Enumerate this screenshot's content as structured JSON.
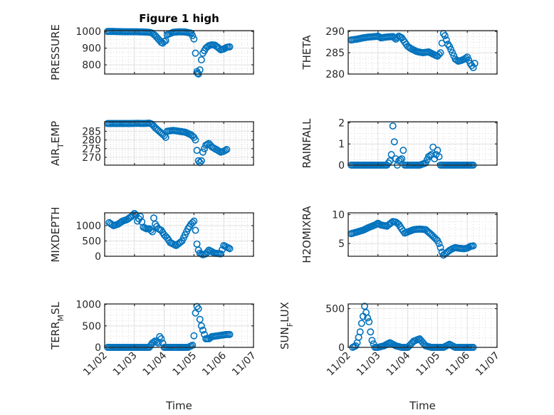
{
  "figure": {
    "title": "Figure 1 high",
    "marker_color": "#0072BD",
    "axis_color": "#262626"
  },
  "chart_data": [
    {
      "type": "scatter",
      "panel": "row1-left",
      "title": "Figure 1 high",
      "ylabel": "PRESSURE",
      "xlabel": "",
      "ylim": [
        745,
        1005
      ],
      "yticks": [
        800,
        900,
        1000
      ],
      "ytick_labels": [
        "800",
        "900",
        "1000"
      ],
      "xlim": [
        0,
        5
      ],
      "xticks": [
        0,
        1,
        2,
        3,
        4,
        5
      ],
      "xtick_labels": [],
      "grid": true,
      "minor_grid": true,
      "x": [
        0.1,
        0.3,
        0.5,
        0.7,
        0.9,
        1.1,
        1.3,
        1.5,
        1.6,
        1.7,
        1.8,
        1.85,
        1.9,
        1.95,
        2.0,
        2.05,
        2.1,
        2.3,
        2.5,
        2.7,
        2.9,
        2.95,
        3.0,
        3.05,
        3.1,
        3.12,
        3.15,
        3.2,
        3.25,
        3.3,
        3.4,
        3.5,
        3.6,
        3.7,
        3.8,
        3.9,
        4.0,
        4.1,
        4.2
      ],
      "y": [
        1000,
        1000,
        999,
        998,
        998,
        998,
        997,
        995,
        990,
        975,
        955,
        945,
        935,
        930,
        940,
        945,
        980,
        995,
        998,
        997,
        990,
        975,
        955,
        870,
        760,
        750,
        745,
        770,
        830,
        870,
        900,
        915,
        920,
        918,
        905,
        890,
        895,
        905,
        908
      ]
    },
    {
      "type": "scatter",
      "panel": "row1-right",
      "title": "",
      "ylabel": "THETA",
      "xlabel": "",
      "ylim": [
        280,
        290.2
      ],
      "yticks": [
        280,
        285,
        290
      ],
      "ytick_labels": [
        "280",
        "285",
        "290"
      ],
      "xlim": [
        0,
        5
      ],
      "xticks": [
        0,
        1,
        2,
        3,
        4,
        5
      ],
      "xtick_labels": [],
      "grid": true,
      "minor_grid": true,
      "x": [
        0.1,
        0.3,
        0.5,
        0.7,
        0.9,
        1.0,
        1.1,
        1.3,
        1.5,
        1.6,
        1.7,
        1.8,
        1.9,
        2.0,
        2.1,
        2.3,
        2.5,
        2.7,
        2.9,
        3.0,
        3.1,
        3.2,
        3.25,
        3.3,
        3.35,
        3.4,
        3.5,
        3.6,
        3.7,
        3.8,
        3.9,
        4.0,
        4.1,
        4.2,
        4.25
      ],
      "y": [
        288,
        288.2,
        288.5,
        288.7,
        288.8,
        288.9,
        288.5,
        288.7,
        288.8,
        288.2,
        288.9,
        288.5,
        287.5,
        286.5,
        286,
        285.3,
        285,
        285.2,
        284.5,
        284.2,
        285,
        289.5,
        289,
        288,
        287,
        286.5,
        285,
        283.5,
        283,
        283.2,
        283.5,
        284,
        282.5,
        281.5,
        282.5
      ]
    },
    {
      "type": "scatter",
      "panel": "row2-left",
      "title": "",
      "ylabel": "AIR_TEMP",
      "ylabel_base": "AIR",
      "ylabel_sub": "T",
      "ylabel_rest": "EMP",
      "xlabel": "",
      "ylim": [
        265.5,
        290.5
      ],
      "yticks": [
        270,
        275,
        280,
        285
      ],
      "ytick_labels": [
        "270",
        "275",
        "280",
        "285"
      ],
      "xlim": [
        0,
        5
      ],
      "xticks": [
        0,
        1,
        2,
        3,
        4,
        5
      ],
      "xtick_labels": [],
      "grid": true,
      "minor_grid": true,
      "x": [
        0.1,
        0.3,
        0.5,
        0.7,
        0.9,
        1.1,
        1.3,
        1.5,
        1.6,
        1.7,
        1.8,
        1.9,
        2.0,
        2.05,
        2.1,
        2.3,
        2.5,
        2.7,
        2.9,
        3.0,
        3.05,
        3.1,
        3.15,
        3.2,
        3.25,
        3.3,
        3.4,
        3.5,
        3.6,
        3.7,
        3.8,
        3.9,
        4.0,
        4.1
      ],
      "y": [
        289.5,
        289.5,
        289.5,
        289.5,
        289.5,
        289.6,
        289.5,
        289.7,
        289,
        287,
        285.5,
        284,
        282.5,
        281.5,
        285,
        285.5,
        285,
        284.5,
        283,
        281.5,
        280,
        274,
        268,
        267,
        268,
        273,
        277,
        278,
        276,
        275,
        274,
        273,
        273.5,
        274.5
      ]
    },
    {
      "type": "scatter",
      "panel": "row2-right",
      "title": "",
      "ylabel": "RAINFALL",
      "xlabel": "",
      "ylim": [
        0,
        2.05
      ],
      "yticks": [
        0,
        1,
        2
      ],
      "ytick_labels": [
        "0",
        "1",
        "2"
      ],
      "xlim": [
        0,
        5
      ],
      "xticks": [
        0,
        1,
        2,
        3,
        4,
        5
      ],
      "xtick_labels": [],
      "grid": true,
      "minor_grid": true,
      "x": [
        0.1,
        0.3,
        0.5,
        0.7,
        0.9,
        1.1,
        1.3,
        1.4,
        1.45,
        1.5,
        1.55,
        1.6,
        1.65,
        1.7,
        1.8,
        1.85,
        1.9,
        2.0,
        2.2,
        2.4,
        2.6,
        2.7,
        2.8,
        2.85,
        2.9,
        2.95,
        3.0,
        3.05,
        3.1,
        3.2,
        3.4,
        3.6,
        3.8,
        4.0,
        4.2
      ],
      "y": [
        0,
        0,
        0,
        0,
        0,
        0,
        0,
        0.2,
        0.5,
        1.85,
        1.1,
        0.3,
        0,
        0.2,
        0.3,
        0.7,
        0,
        0,
        0,
        0,
        0.1,
        0.4,
        0.5,
        0.85,
        0.3,
        0.5,
        0.7,
        0.4,
        0,
        0,
        0,
        0,
        0,
        0,
        0
      ]
    },
    {
      "type": "scatter",
      "panel": "row3-left",
      "title": "",
      "ylabel": "MIXDEPTH",
      "xlabel": "",
      "ylim": [
        0,
        1420
      ],
      "yticks": [
        0,
        500,
        1000
      ],
      "ytick_labels": [
        "0",
        "500",
        "1000"
      ],
      "xlim": [
        0,
        5
      ],
      "xticks": [
        0,
        1,
        2,
        3,
        4,
        5
      ],
      "xtick_labels": [],
      "grid": true,
      "minor_grid": true,
      "x": [
        0.15,
        0.3,
        0.45,
        0.6,
        0.75,
        0.9,
        1.0,
        1.05,
        1.1,
        1.2,
        1.3,
        1.4,
        1.5,
        1.6,
        1.65,
        1.7,
        1.8,
        1.9,
        2.0,
        2.1,
        2.2,
        2.4,
        2.6,
        2.8,
        2.9,
        3.0,
        3.05,
        3.1,
        3.15,
        3.2,
        3.3,
        3.4,
        3.5,
        3.7,
        3.9,
        4.0,
        4.1,
        4.2
      ],
      "y": [
        1100,
        1000,
        1050,
        1150,
        1200,
        1300,
        1400,
        1350,
        1150,
        1300,
        950,
        900,
        900,
        800,
        1250,
        1050,
        900,
        850,
        700,
        600,
        450,
        350,
        500,
        900,
        1050,
        1150,
        850,
        400,
        200,
        100,
        50,
        80,
        200,
        100,
        80,
        350,
        300,
        250
      ]
    },
    {
      "type": "scatter",
      "panel": "row3-right",
      "title": "",
      "ylabel": "H2OMIXRA",
      "xlabel": "",
      "ylim": [
        2.8,
        10.3
      ],
      "yticks": [
        5,
        10
      ],
      "ytick_labels": [
        "5",
        "10"
      ],
      "xlim": [
        0,
        5
      ],
      "xticks": [
        0,
        1,
        2,
        3,
        4,
        5
      ],
      "xtick_labels": [],
      "grid": true,
      "minor_grid": true,
      "x": [
        0.1,
        0.3,
        0.5,
        0.7,
        0.9,
        1.0,
        1.1,
        1.3,
        1.5,
        1.6,
        1.7,
        1.8,
        1.9,
        2.0,
        2.2,
        2.4,
        2.6,
        2.8,
        2.9,
        3.0,
        3.05,
        3.1,
        3.15,
        3.2,
        3.3,
        3.4,
        3.5,
        3.6,
        3.7,
        3.9,
        4.0,
        4.1,
        4.2
      ],
      "y": [
        6.7,
        7,
        7.3,
        7.8,
        8.2,
        8.5,
        8.2,
        8.0,
        8.8,
        8.7,
        8.3,
        7.5,
        6.8,
        7.0,
        7.4,
        7.5,
        7.4,
        6.5,
        6.0,
        5.5,
        5.0,
        4.3,
        3.5,
        3.0,
        3.4,
        3.8,
        4.1,
        4.3,
        4.2,
        4.1,
        4.2,
        4.5,
        4.6
      ]
    },
    {
      "type": "scatter",
      "panel": "row4-left",
      "title": "",
      "ylabel": "TERR_MSL",
      "ylabel_base": "TERR",
      "ylabel_sub": "M",
      "ylabel_rest": "SL",
      "xlabel": "Time",
      "ylim": [
        0,
        1010
      ],
      "yticks": [
        0,
        500,
        1000
      ],
      "ytick_labels": [
        "0",
        "500",
        "1000"
      ],
      "xlim": [
        0,
        5
      ],
      "xticks": [
        0,
        1,
        2,
        3,
        4,
        5
      ],
      "xtick_labels": [
        "11/02",
        "11/03",
        "11/04",
        "11/05",
        "11/06",
        "11/07"
      ],
      "grid": true,
      "minor_grid": true,
      "x": [
        0.1,
        0.3,
        0.5,
        0.7,
        0.9,
        1.1,
        1.3,
        1.5,
        1.6,
        1.7,
        1.8,
        1.85,
        1.9,
        1.95,
        2.0,
        2.2,
        2.4,
        2.6,
        2.8,
        2.95,
        3.0,
        3.05,
        3.1,
        3.15,
        3.2,
        3.25,
        3.3,
        3.35,
        3.4,
        3.5,
        3.6,
        3.7,
        3.8,
        3.9,
        4.0,
        4.1,
        4.2
      ],
      "y": [
        0,
        0,
        0,
        0,
        0,
        0,
        0,
        0,
        100,
        150,
        100,
        250,
        200,
        100,
        0,
        0,
        0,
        0,
        0,
        50,
        270,
        800,
        950,
        900,
        650,
        500,
        400,
        300,
        200,
        200,
        250,
        260,
        270,
        280,
        290,
        300,
        300
      ]
    },
    {
      "type": "scatter",
      "panel": "row4-right",
      "title": "",
      "ylabel": "SUN_FLUX",
      "ylabel_base": "SUN",
      "ylabel_sub": "F",
      "ylabel_rest": "LUX",
      "xlabel": "Time",
      "ylim": [
        0,
        560
      ],
      "yticks": [
        0,
        500
      ],
      "ytick_labels": [
        "0",
        "500"
      ],
      "xlim": [
        0,
        5
      ],
      "xticks": [
        0,
        1,
        2,
        3,
        4,
        5
      ],
      "xtick_labels": [
        "11/02",
        "11/03",
        "11/04",
        "11/05",
        "11/06",
        "11/07"
      ],
      "grid": true,
      "minor_grid": true,
      "x": [
        0.15,
        0.2,
        0.25,
        0.3,
        0.35,
        0.4,
        0.45,
        0.5,
        0.55,
        0.6,
        0.65,
        0.7,
        0.75,
        0.8,
        0.9,
        1.0,
        1.2,
        1.4,
        1.6,
        1.8,
        2.0,
        2.2,
        2.4,
        2.6,
        2.8,
        3.0,
        3.2,
        3.4,
        3.6,
        3.8,
        4.0,
        4.2
      ],
      "y": [
        0,
        10,
        20,
        60,
        130,
        200,
        310,
        400,
        530,
        450,
        380,
        330,
        200,
        90,
        0,
        0,
        20,
        60,
        20,
        0,
        0,
        80,
        110,
        20,
        0,
        0,
        0,
        40,
        0,
        0,
        0,
        0
      ]
    }
  ]
}
